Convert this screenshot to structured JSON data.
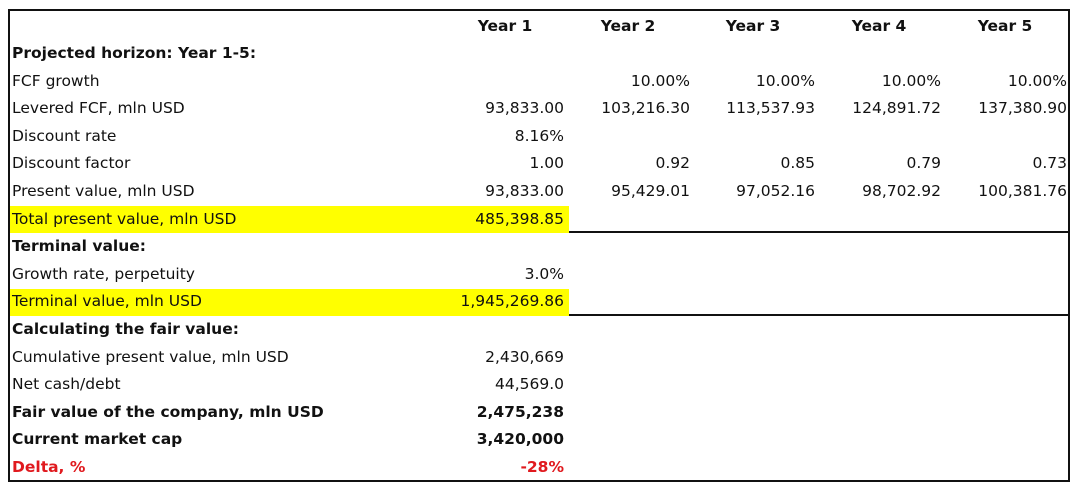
{
  "columns": [
    "Year 1",
    "Year 2",
    "Year 3",
    "Year 4",
    "Year 5"
  ],
  "rows": [
    {
      "label": "Projected horizon: Year 1-5:",
      "bold": true,
      "values": [
        "",
        "",
        "",
        "",
        ""
      ]
    },
    {
      "label": "FCF growth",
      "values": [
        "",
        "10.00%",
        "10.00%",
        "10.00%",
        "10.00%"
      ]
    },
    {
      "label": "Levered FCF, mln USD",
      "values": [
        "93,833.00",
        "103,216.30",
        "113,537.93",
        "124,891.72",
        "137,380.90"
      ]
    },
    {
      "label": "Discount rate",
      "values": [
        "8.16%",
        "",
        "",
        "",
        ""
      ]
    },
    {
      "label": "Discount factor",
      "values": [
        "1.00",
        "0.92",
        "0.85",
        "0.79",
        "0.73"
      ]
    },
    {
      "label": "Present value, mln USD",
      "values": [
        "93,833.00",
        "95,429.01",
        "97,052.16",
        "98,702.92",
        "100,381.76"
      ]
    },
    {
      "label": "Total present value, mln USD",
      "highlight": true,
      "values": [
        "485,398.85",
        "",
        "",
        "",
        ""
      ]
    },
    {
      "label": "Terminal value:",
      "bold": true,
      "values": [
        "",
        "",
        "",
        "",
        ""
      ]
    },
    {
      "label": "Growth rate, perpetuity",
      "values": [
        "3.0%",
        "",
        "",
        "",
        ""
      ]
    },
    {
      "label": "Terminal value, mln USD",
      "highlight": true,
      "values": [
        "1,945,269.86",
        "",
        "",
        "",
        ""
      ]
    },
    {
      "label": "Calculating the fair value:",
      "bold": true,
      "values": [
        "",
        "",
        "",
        "",
        ""
      ]
    },
    {
      "label": "Cumulative present value, mln USD",
      "values": [
        "2,430,669",
        "",
        "",
        "",
        ""
      ]
    },
    {
      "label": "Net cash/debt",
      "values": [
        "44,569.0",
        "",
        "",
        "",
        ""
      ]
    },
    {
      "label": "Fair value of the company, mln USD",
      "bold": true,
      "values": [
        "2,475,238",
        "",
        "",
        "",
        ""
      ]
    },
    {
      "label": "Current market cap",
      "bold": true,
      "values": [
        "3,420,000",
        "",
        "",
        "",
        ""
      ]
    },
    {
      "label": "Delta, %",
      "bold": true,
      "red": true,
      "values": [
        "-28%",
        "",
        "",
        "",
        ""
      ]
    }
  ],
  "colors": {
    "highlight": "#ffff00",
    "negative": "#e0191e",
    "border": "#111111"
  }
}
